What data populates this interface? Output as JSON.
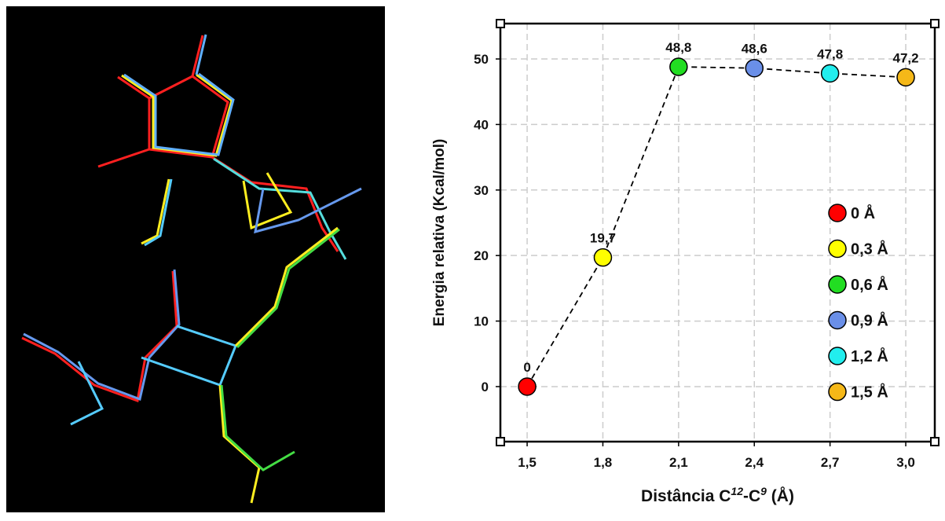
{
  "chart_data": {
    "type": "line",
    "xlabel": [
      "Distância C",
      "12",
      "-C",
      "9",
      " (Å)"
    ],
    "ylabel": "Energia relativa (Kcal/mol)",
    "x": [
      1.5,
      1.8,
      2.1,
      2.4,
      2.7,
      3.0
    ],
    "values": [
      0,
      19.7,
      48.8,
      48.6,
      47.8,
      47.2
    ],
    "value_labels": [
      "0",
      "19,7",
      "48,8",
      "48,6",
      "47,8",
      "47,2"
    ],
    "point_colors": [
      "#ff0000",
      "#ffff00",
      "#22dd22",
      "#6a8fe8",
      "#22eeee",
      "#f5b818"
    ],
    "legend_labels": [
      "0 Å",
      "0,3 Å",
      "0,6 Å",
      "0,9 Å",
      "1,2 Å",
      "1,5 Å"
    ],
    "xlim": [
      1.394,
      3.115
    ],
    "ylim": [
      -8.4,
      55.4
    ],
    "xticks": [
      {
        "value": 1.5,
        "label": "1,5"
      },
      {
        "value": 1.8,
        "label": "1,8"
      },
      {
        "value": 2.1,
        "label": "2,1"
      },
      {
        "value": 2.4,
        "label": "2,4"
      },
      {
        "value": 2.7,
        "label": "2,7"
      },
      {
        "value": 3.0,
        "label": "3,0"
      }
    ],
    "yticks": [
      0,
      10,
      20,
      30,
      40,
      50
    ],
    "grid": true
  }
}
